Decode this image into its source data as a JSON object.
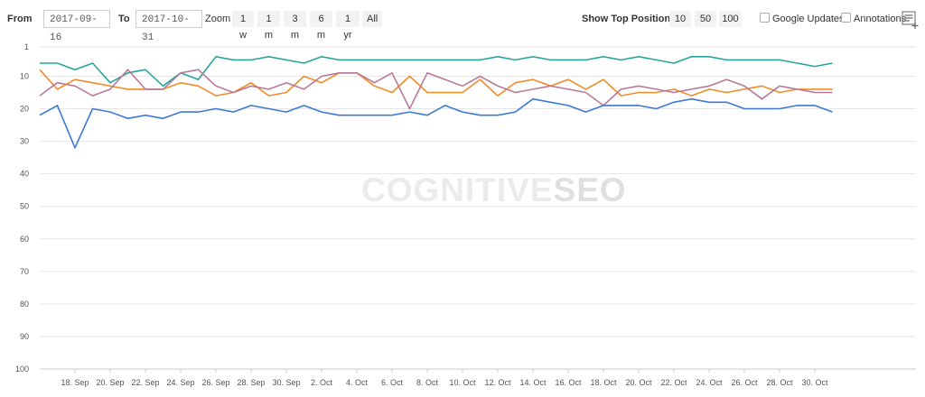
{
  "toolbar": {
    "from_label": "From",
    "from_value": "2017-09-16",
    "to_label": "To",
    "to_value": "2017-10-31",
    "zoom_label": "Zoom",
    "zoom_options": [
      "1 w",
      "1 m",
      "3 m",
      "6 m",
      "1 yr",
      "All"
    ],
    "top_positions_label": "Show Top Positions",
    "top_positions_options": [
      "10",
      "50",
      "100"
    ],
    "google_updates_label": "Google Updates",
    "annotations_label": "Annotations",
    "menu_icon": "context-menu-icon"
  },
  "watermark": {
    "left": "COGNITIVE",
    "right": "SEO"
  },
  "chart_data": {
    "type": "line",
    "ylim": [
      100,
      1
    ],
    "y_reversed": true,
    "y_ticks": [
      1,
      10,
      20,
      30,
      40,
      50,
      60,
      70,
      80,
      90,
      100
    ],
    "x_tick_labels": [
      "18. Sep",
      "20. Sep",
      "22. Sep",
      "24. Sep",
      "26. Sep",
      "28. Sep",
      "30. Sep",
      "2. Oct",
      "4. Oct",
      "6. Oct",
      "8. Oct",
      "10. Oct",
      "12. Oct",
      "14. Oct",
      "16. Oct",
      "18. Oct",
      "20. Oct",
      "22. Oct",
      "24. Oct",
      "26. Oct",
      "28. Oct",
      "30. Oct"
    ],
    "x": [
      "2017-09-16",
      "2017-09-17",
      "2017-09-18",
      "2017-09-19",
      "2017-09-20",
      "2017-09-21",
      "2017-09-22",
      "2017-09-23",
      "2017-09-24",
      "2017-09-25",
      "2017-09-26",
      "2017-09-27",
      "2017-09-28",
      "2017-09-29",
      "2017-09-30",
      "2017-10-01",
      "2017-10-02",
      "2017-10-03",
      "2017-10-04",
      "2017-10-05",
      "2017-10-06",
      "2017-10-07",
      "2017-10-08",
      "2017-10-09",
      "2017-10-10",
      "2017-10-11",
      "2017-10-12",
      "2017-10-13",
      "2017-10-14",
      "2017-10-15",
      "2017-10-16",
      "2017-10-17",
      "2017-10-18",
      "2017-10-19",
      "2017-10-20",
      "2017-10-21",
      "2017-10-22",
      "2017-10-23",
      "2017-10-24",
      "2017-10-25",
      "2017-10-26",
      "2017-10-27",
      "2017-10-28",
      "2017-10-29",
      "2017-10-30",
      "2017-10-31"
    ],
    "grid": true,
    "legend": "none",
    "series": [
      {
        "color": "#26a69a",
        "values": [
          6,
          6,
          8,
          6,
          12,
          9,
          8,
          13,
          9,
          11,
          4,
          5,
          5,
          4,
          5,
          6,
          4,
          5,
          5,
          5,
          5,
          5,
          5,
          5,
          5,
          5,
          4,
          5,
          4,
          5,
          5,
          5,
          4,
          5,
          4,
          5,
          6,
          4,
          4,
          5,
          5,
          5,
          5,
          6,
          7,
          6
        ]
      },
      {
        "color": "#f28c28",
        "values": [
          8,
          14,
          11,
          12,
          13,
          14,
          14,
          14,
          12,
          13,
          16,
          15,
          12,
          16,
          15,
          10,
          12,
          9,
          9,
          13,
          15,
          10,
          15,
          15,
          15,
          11,
          16,
          12,
          11,
          13,
          11,
          14,
          11,
          16,
          15,
          15,
          14,
          16,
          14,
          15,
          14,
          13,
          15,
          14,
          14,
          14
        ]
      },
      {
        "color": "#b97a9a",
        "values": [
          16,
          12,
          13,
          16,
          14,
          8,
          14,
          14,
          9,
          8,
          13,
          15,
          13,
          14,
          12,
          14,
          10,
          9,
          9,
          12,
          9,
          20,
          9,
          11,
          13,
          10,
          13,
          15,
          14,
          13,
          14,
          15,
          19,
          14,
          13,
          14,
          15,
          14,
          13,
          11,
          13,
          17,
          13,
          14,
          15,
          15
        ]
      },
      {
        "color": "#3c78d8",
        "values": [
          22,
          19,
          32,
          20,
          21,
          23,
          22,
          23,
          21,
          21,
          20,
          21,
          19,
          20,
          21,
          19,
          21,
          22,
          22,
          22,
          22,
          21,
          22,
          19,
          21,
          22,
          22,
          21,
          17,
          18,
          19,
          21,
          19,
          19,
          19,
          20,
          18,
          17,
          18,
          18,
          20,
          20,
          20,
          19,
          19,
          21
        ]
      }
    ]
  }
}
